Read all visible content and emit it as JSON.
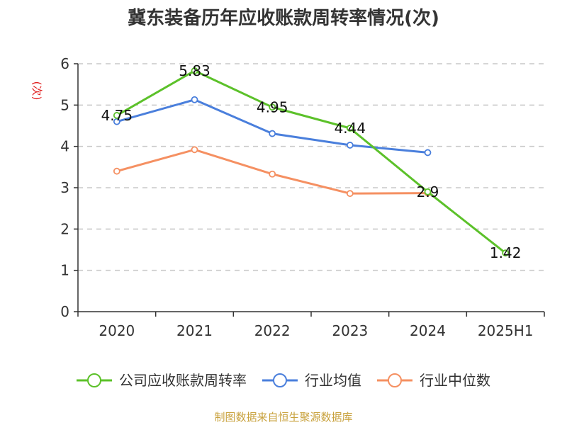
{
  "chart_data": {
    "type": "line",
    "title": "冀东装备历年应收账款周转率情况(次)",
    "ylabel": "(次)",
    "xlabel": "",
    "categories": [
      "2020",
      "2021",
      "2022",
      "2023",
      "2024",
      "2025H1"
    ],
    "ylim": [
      0,
      6
    ],
    "yticks": [
      0,
      1,
      2,
      3,
      4,
      5,
      6
    ],
    "grid": true,
    "legend_position": "bottom",
    "series": [
      {
        "name": "公司应收账款周转率",
        "color": "#5cc12a",
        "values": [
          4.75,
          5.83,
          4.95,
          4.44,
          2.9,
          1.42
        ],
        "labels": [
          "4.75",
          "5.83",
          "4.95",
          "4.44",
          "2.9",
          "1.42"
        ]
      },
      {
        "name": "行业均值",
        "color": "#4a7fdc",
        "values": [
          4.6,
          5.13,
          4.31,
          4.03,
          3.85,
          null
        ]
      },
      {
        "name": "行业中位数",
        "color": "#f59062",
        "values": [
          3.4,
          3.92,
          3.33,
          2.86,
          2.87,
          null
        ]
      }
    ]
  },
  "source": "制图数据来自恒生聚源数据库"
}
